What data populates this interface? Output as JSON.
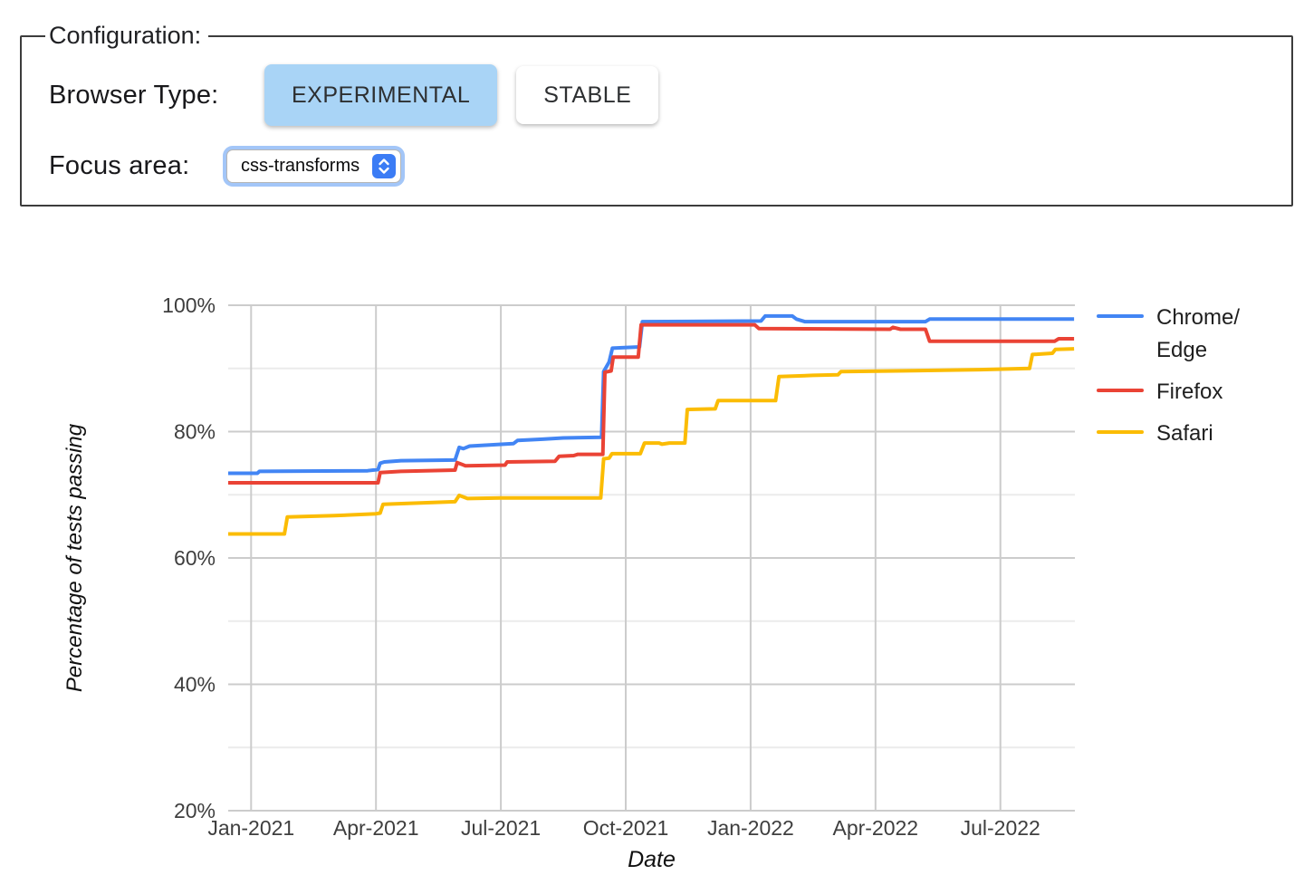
{
  "config": {
    "legend": "Configuration:",
    "browser_type_label": "Browser Type:",
    "browser_type_options": [
      {
        "label": "EXPERIMENTAL",
        "selected": true
      },
      {
        "label": "STABLE",
        "selected": false
      }
    ],
    "selected_option_bg": "#a9d4f6",
    "focus_area_label": "Focus area:",
    "focus_area_value": "css-transforms",
    "stepper_color": "#3b7cf5"
  },
  "chart_data": {
    "type": "line",
    "title": "",
    "xlabel": "Date",
    "ylabel": "Percentage of tests passing",
    "x_axis": {
      "unit": "months since Jan-2021 (fractional)",
      "min": -0.55,
      "max": 19.79,
      "ticks": [
        {
          "m": 0,
          "label": "Jan-2021"
        },
        {
          "m": 3,
          "label": "Apr-2021"
        },
        {
          "m": 6,
          "label": "Jul-2021"
        },
        {
          "m": 9,
          "label": "Oct-2021"
        },
        {
          "m": 12,
          "label": "Jan-2022"
        },
        {
          "m": 15,
          "label": "Apr-2022"
        },
        {
          "m": 18,
          "label": "Jul-2022"
        }
      ]
    },
    "y_axis": {
      "min": 20,
      "max": 100,
      "major_ticks": [
        {
          "v": 20,
          "label": "20%"
        },
        {
          "v": 40,
          "label": "40%"
        },
        {
          "v": 60,
          "label": "60%"
        },
        {
          "v": 80,
          "label": "80%"
        },
        {
          "v": 100,
          "label": "100%"
        }
      ],
      "minor_ticks": [
        30,
        50,
        70,
        90
      ]
    },
    "grid": {
      "major_color": "#cccccc",
      "minor_color": "#ebebeb"
    },
    "label_color": "#3e3e3e",
    "title_color": "#111111",
    "legend_text_color": "#1f1f1f",
    "legend": [
      {
        "lines": [
          "Chrome/",
          "Edge"
        ],
        "color": "#4285F4"
      },
      {
        "lines": [
          "Firefox"
        ],
        "color": "#EA4335"
      },
      {
        "lines": [
          "Safari"
        ],
        "color": "#FBBC04"
      }
    ],
    "series": [
      {
        "name": "Chrome/Edge",
        "color": "#4285F4",
        "points": [
          [
            -0.55,
            73.4
          ],
          [
            0.15,
            73.4
          ],
          [
            0.2,
            73.7
          ],
          [
            2.8,
            73.8
          ],
          [
            3.05,
            74.0
          ],
          [
            3.1,
            75.0
          ],
          [
            3.2,
            75.2
          ],
          [
            3.6,
            75.4
          ],
          [
            4.9,
            75.5
          ],
          [
            5.0,
            77.5
          ],
          [
            5.1,
            77.3
          ],
          [
            5.25,
            77.7
          ],
          [
            6.3,
            78.1
          ],
          [
            6.4,
            78.6
          ],
          [
            7.0,
            78.8
          ],
          [
            7.5,
            79.0
          ],
          [
            8.42,
            79.1
          ],
          [
            8.47,
            89.5
          ],
          [
            8.6,
            91.0
          ],
          [
            8.68,
            93.2
          ],
          [
            9.33,
            93.4
          ],
          [
            9.4,
            97.4
          ],
          [
            12.25,
            97.5
          ],
          [
            12.35,
            98.3
          ],
          [
            13.0,
            98.3
          ],
          [
            13.1,
            97.8
          ],
          [
            13.3,
            97.4
          ],
          [
            16.2,
            97.4
          ],
          [
            16.3,
            97.8
          ],
          [
            19.77,
            97.8
          ]
        ]
      },
      {
        "name": "Firefox",
        "color": "#EA4335",
        "points": [
          [
            -0.55,
            71.9
          ],
          [
            3.05,
            71.9
          ],
          [
            3.1,
            73.5
          ],
          [
            3.6,
            73.7
          ],
          [
            4.9,
            73.9
          ],
          [
            4.95,
            75.1
          ],
          [
            5.15,
            74.6
          ],
          [
            6.1,
            74.7
          ],
          [
            6.15,
            75.2
          ],
          [
            7.3,
            75.3
          ],
          [
            7.4,
            76.1
          ],
          [
            7.75,
            76.2
          ],
          [
            7.85,
            76.4
          ],
          [
            8.45,
            76.4
          ],
          [
            8.5,
            89.4
          ],
          [
            8.65,
            89.6
          ],
          [
            8.7,
            91.8
          ],
          [
            9.3,
            91.8
          ],
          [
            9.37,
            96.9
          ],
          [
            12.1,
            96.9
          ],
          [
            12.2,
            96.3
          ],
          [
            15.35,
            96.2
          ],
          [
            15.42,
            96.5
          ],
          [
            15.6,
            96.2
          ],
          [
            16.2,
            96.2
          ],
          [
            16.3,
            94.3
          ],
          [
            19.3,
            94.3
          ],
          [
            19.4,
            94.7
          ],
          [
            19.77,
            94.7
          ]
        ]
      },
      {
        "name": "Safari",
        "color": "#FBBC04",
        "points": [
          [
            -0.55,
            63.8
          ],
          [
            0.8,
            63.8
          ],
          [
            0.87,
            66.5
          ],
          [
            2.0,
            66.7
          ],
          [
            3.0,
            67.0
          ],
          [
            3.1,
            67.1
          ],
          [
            3.17,
            68.5
          ],
          [
            4.9,
            68.9
          ],
          [
            5.0,
            69.9
          ],
          [
            5.2,
            69.4
          ],
          [
            6.0,
            69.5
          ],
          [
            8.4,
            69.5
          ],
          [
            8.47,
            75.7
          ],
          [
            8.6,
            75.8
          ],
          [
            8.67,
            76.5
          ],
          [
            9.35,
            76.5
          ],
          [
            9.45,
            78.2
          ],
          [
            9.8,
            78.2
          ],
          [
            9.87,
            78.0
          ],
          [
            10.05,
            78.2
          ],
          [
            10.42,
            78.2
          ],
          [
            10.48,
            83.5
          ],
          [
            11.15,
            83.6
          ],
          [
            11.22,
            84.9
          ],
          [
            12.6,
            84.9
          ],
          [
            12.68,
            88.7
          ],
          [
            13.5,
            88.9
          ],
          [
            14.1,
            89.0
          ],
          [
            14.17,
            89.5
          ],
          [
            15.5,
            89.6
          ],
          [
            17.5,
            89.8
          ],
          [
            18.7,
            90.0
          ],
          [
            18.77,
            92.2
          ],
          [
            19.0,
            92.3
          ],
          [
            19.25,
            92.4
          ],
          [
            19.32,
            93.0
          ],
          [
            19.77,
            93.1
          ]
        ]
      }
    ]
  }
}
